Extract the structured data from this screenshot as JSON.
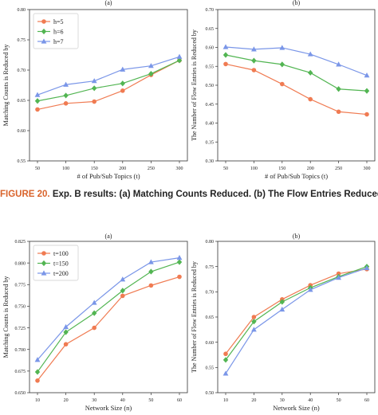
{
  "caption": {
    "label": "FIGURE 20.",
    "text": "Exp. B results: (a) Matching Counts Reduced. (b) The Flow Entries Reduced."
  },
  "colors": {
    "series1": "#f07b52",
    "series2": "#52b552",
    "series3": "#7a96e8",
    "axis": "#333333",
    "text": "#222222"
  },
  "chart_data": [
    {
      "type": "line",
      "title": "(a)",
      "xlabel": "# of Pub/Sub Topics (t)",
      "ylabel": "Matching Counts is Reduced by",
      "x": [
        "50",
        "100",
        "150",
        "200",
        "250",
        "300"
      ],
      "ylim": [
        0.55,
        0.8
      ],
      "yticks": [
        "0.55",
        "0.60",
        "0.65",
        "0.70",
        "0.75",
        "0.80"
      ],
      "legend": "top-left",
      "series": [
        {
          "name": "h=5",
          "marker": "circle",
          "values": [
            0.635,
            0.645,
            0.648,
            0.666,
            0.692,
            0.716
          ]
        },
        {
          "name": "h=6",
          "marker": "diamond",
          "values": [
            0.649,
            0.658,
            0.67,
            0.678,
            0.694,
            0.716
          ]
        },
        {
          "name": "h=7",
          "marker": "triangle",
          "values": [
            0.659,
            0.676,
            0.682,
            0.701,
            0.707,
            0.722
          ]
        }
      ]
    },
    {
      "type": "line",
      "title": "(b)",
      "xlabel": "# of Pub/Sub Topics (t)",
      "ylabel": "The Number of Flow Entries is Reduced by",
      "x": [
        "50",
        "100",
        "150",
        "200",
        "250",
        "300"
      ],
      "ylim": [
        0.3,
        0.7
      ],
      "yticks": [
        "0.30",
        "0.35",
        "0.40",
        "0.45",
        "0.50",
        "0.55",
        "0.60",
        "0.65",
        "0.70"
      ],
      "series": [
        {
          "marker": "circle",
          "values": [
            0.556,
            0.54,
            0.503,
            0.463,
            0.43,
            0.423
          ]
        },
        {
          "marker": "diamond",
          "values": [
            0.58,
            0.565,
            0.555,
            0.533,
            0.49,
            0.485
          ]
        },
        {
          "marker": "triangle",
          "values": [
            0.601,
            0.595,
            0.599,
            0.582,
            0.555,
            0.526
          ]
        }
      ]
    },
    {
      "type": "line",
      "title": "(a)",
      "xlabel": "Network Size (n)",
      "ylabel": "Matching Counts is Reduced by",
      "x": [
        "10",
        "20",
        "30",
        "40",
        "50",
        "60"
      ],
      "ylim": [
        0.65,
        0.825
      ],
      "yticks": [
        "0.650",
        "0.675",
        "0.700",
        "0.725",
        "0.750",
        "0.775",
        "0.800",
        "0.825"
      ],
      "legend": "top-left",
      "series": [
        {
          "name": "t=100",
          "marker": "circle",
          "values": [
            0.664,
            0.706,
            0.725,
            0.762,
            0.774,
            0.784
          ]
        },
        {
          "name": "t=150",
          "marker": "diamond",
          "values": [
            0.674,
            0.72,
            0.742,
            0.768,
            0.79,
            0.801
          ]
        },
        {
          "name": "t=200",
          "marker": "triangle",
          "values": [
            0.688,
            0.726,
            0.754,
            0.781,
            0.801,
            0.806
          ]
        }
      ]
    },
    {
      "type": "line",
      "title": "(b)",
      "xlabel": "Network Size (n)",
      "ylabel": "The Number of Flow Entries is Reduced by",
      "x": [
        "10",
        "20",
        "30",
        "40",
        "50",
        "60"
      ],
      "ylim": [
        0.5,
        0.8
      ],
      "yticks": [
        "0.50",
        "0.55",
        "0.60",
        "0.65",
        "0.70",
        "0.75",
        "0.80"
      ],
      "series": [
        {
          "marker": "circle",
          "values": [
            0.577,
            0.65,
            0.685,
            0.713,
            0.736,
            0.745
          ]
        },
        {
          "marker": "diamond",
          "values": [
            0.565,
            0.641,
            0.68,
            0.708,
            0.73,
            0.75
          ]
        },
        {
          "marker": "triangle",
          "values": [
            0.538,
            0.625,
            0.665,
            0.704,
            0.728,
            0.747
          ]
        }
      ]
    }
  ]
}
